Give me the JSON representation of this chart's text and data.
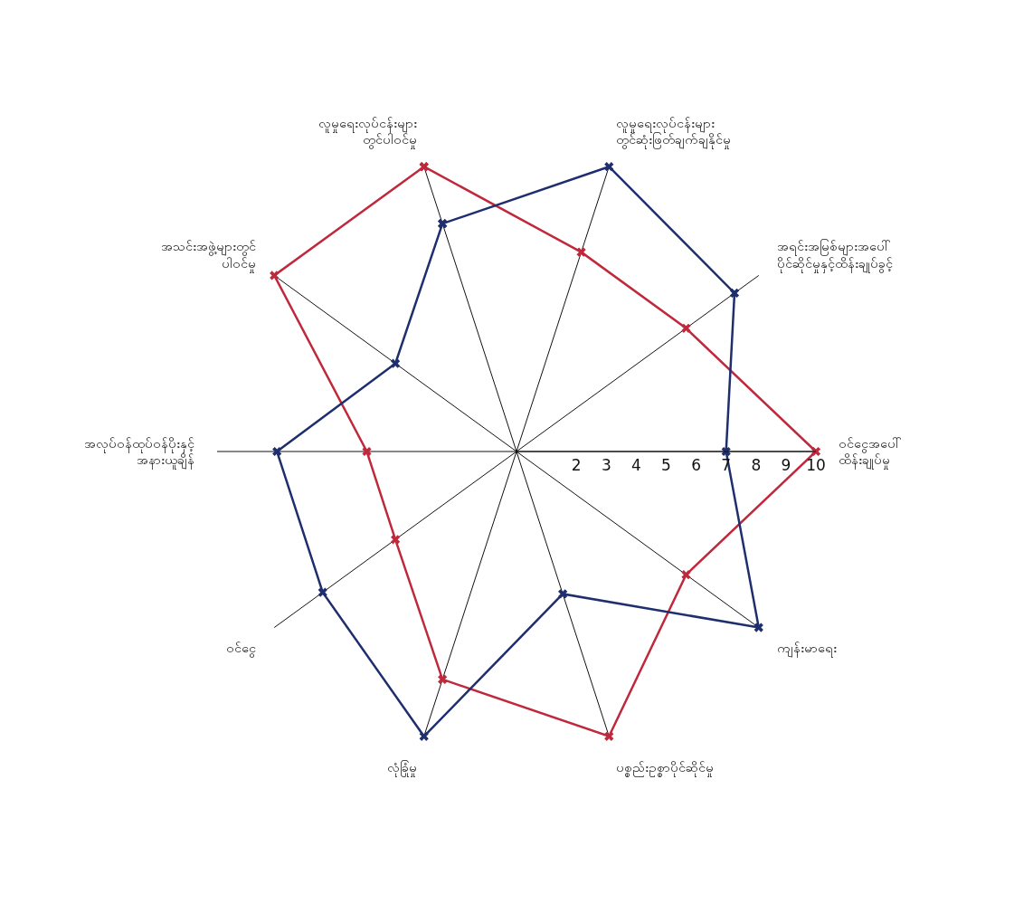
{
  "chart_data": {
    "type": "radar",
    "categories": [
      "လူမှုရေးလုပ်ငန်းများ တွင်ပါဝင်မှု",
      "လူမှုရေးလုပ်ငန်းများ တွင်ဆုံးဖြတ်ချက်ချနိုင်မှု",
      "အရင်းအမြစ်များအပေါ် ပိုင်ဆိုင်မှုနှင့်ထိန်းချုပ်ခွင့်",
      "ဝင်ငွေအပေါ် ထိန်းချုပ်မှု",
      "ကျန်းမာရေး",
      "ပစ္စည်းဥစ္စာပိုင်ဆိုင်မှု",
      "လုံခြုံမှု",
      "ဝင်ငွေ",
      "အလုပ်ဝန်ထုပ်ဝန်ပိုးနှင့် အနားယူချိန်",
      "အသင်းအဖွဲ့များတွင် ပါဝင်မှု"
    ],
    "series": [
      {
        "color": "#c0283c",
        "values": [
          10,
          7,
          7,
          10,
          7,
          10,
          8,
          5,
          5,
          10
        ]
      },
      {
        "color": "#1f2f6e",
        "values": [
          8,
          10,
          9,
          7,
          10,
          5,
          10,
          8,
          8,
          5
        ]
      }
    ],
    "ylim": [
      0,
      10
    ],
    "yticks": [
      2,
      3,
      4,
      5,
      6,
      7,
      8,
      9,
      10
    ],
    "grid": "x",
    "marker": "cross",
    "line_style": "solid"
  }
}
